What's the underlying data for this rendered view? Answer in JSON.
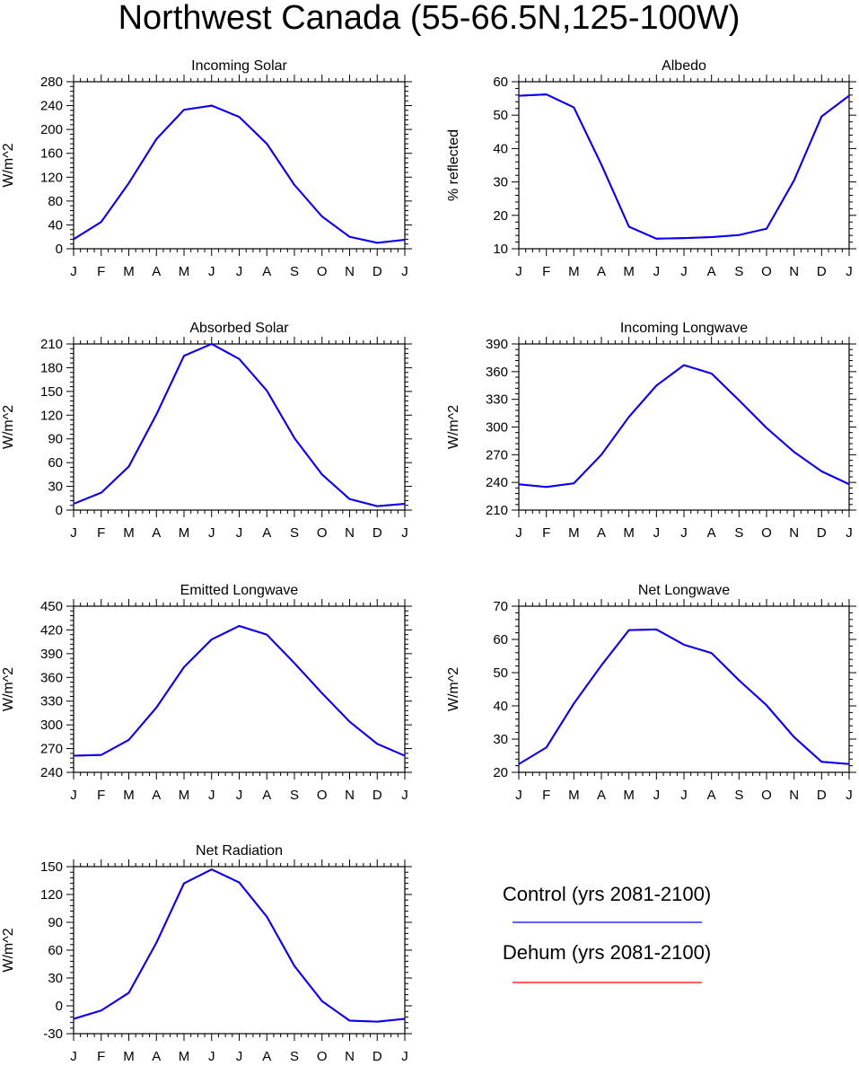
{
  "figure": {
    "title": "Northwest Canada (55-66.5N,125-100W)"
  },
  "colors": {
    "control": "#0000ff",
    "dehum": "#ff0000",
    "axis": "#000000"
  },
  "legend": {
    "entries": [
      {
        "label": "Control (yrs 2081-2100)",
        "color": "#0000ff"
      },
      {
        "label": "Dehum (yrs 2081-2100)",
        "color": "#ff0000"
      }
    ]
  },
  "chart_data": [
    {
      "type": "line",
      "title": "Incoming Solar",
      "ylabel": "W/m^2",
      "xlabel": "",
      "x": [
        "J",
        "F",
        "M",
        "A",
        "M",
        "J",
        "J",
        "A",
        "S",
        "O",
        "N",
        "D",
        "J"
      ],
      "ylim": [
        0,
        280
      ],
      "yticks": [
        0,
        40,
        80,
        120,
        160,
        200,
        240,
        280
      ],
      "series": [
        {
          "name": "Control (yrs 2081-2100)",
          "color": "#0000ff",
          "values": [
            16,
            45,
            110,
            184,
            233,
            240,
            221,
            176,
            107,
            54,
            20,
            10,
            15
          ]
        },
        {
          "name": "Dehum (yrs 2081-2100)",
          "color": "#ff0000",
          "values": [
            16,
            45,
            110,
            184,
            233,
            240,
            221,
            176,
            107,
            54,
            20,
            10,
            15
          ]
        }
      ]
    },
    {
      "type": "line",
      "title": "Albedo",
      "ylabel": "% reflected",
      "xlabel": "",
      "x": [
        "J",
        "F",
        "M",
        "A",
        "M",
        "J",
        "J",
        "A",
        "S",
        "O",
        "N",
        "D",
        "J"
      ],
      "ylim": [
        10,
        60
      ],
      "yticks": [
        10,
        20,
        30,
        40,
        50,
        60
      ],
      "series": [
        {
          "name": "Control (yrs 2081-2100)",
          "color": "#0000ff",
          "values": [
            55.8,
            56.2,
            52.3,
            35.2,
            16.6,
            13.0,
            13.2,
            13.5,
            14.1,
            16.0,
            30.5,
            49.6,
            55.8
          ]
        },
        {
          "name": "Dehum (yrs 2081-2100)",
          "color": "#ff0000",
          "values": [
            55.8,
            56.2,
            52.3,
            35.2,
            16.6,
            13.0,
            13.2,
            13.5,
            14.1,
            16.0,
            30.5,
            49.6,
            55.8
          ]
        }
      ]
    },
    {
      "type": "line",
      "title": "Absorbed Solar",
      "ylabel": "W/m^2",
      "xlabel": "",
      "x": [
        "J",
        "F",
        "M",
        "A",
        "M",
        "J",
        "J",
        "A",
        "S",
        "O",
        "N",
        "D",
        "J"
      ],
      "ylim": [
        0,
        210
      ],
      "yticks": [
        0,
        30,
        60,
        90,
        120,
        150,
        180,
        210
      ],
      "series": [
        {
          "name": "Control (yrs 2081-2100)",
          "color": "#0000ff",
          "values": [
            8,
            22,
            55,
            121,
            195,
            210,
            191,
            151,
            91,
            45,
            14,
            5,
            8
          ]
        },
        {
          "name": "Dehum (yrs 2081-2100)",
          "color": "#ff0000",
          "values": [
            8,
            22,
            55,
            121,
            195,
            210,
            191,
            151,
            91,
            45,
            14,
            5,
            8
          ]
        }
      ]
    },
    {
      "type": "line",
      "title": "Incoming Longwave",
      "ylabel": "W/m^2",
      "xlabel": "",
      "x": [
        "J",
        "F",
        "M",
        "A",
        "M",
        "J",
        "J",
        "A",
        "S",
        "O",
        "N",
        "D",
        "J"
      ],
      "ylim": [
        210,
        390
      ],
      "yticks": [
        210,
        240,
        270,
        300,
        330,
        360,
        390
      ],
      "series": [
        {
          "name": "Control (yrs 2081-2100)",
          "color": "#0000ff",
          "values": [
            238,
            235,
            239,
            270,
            311,
            345,
            367,
            358,
            329,
            299,
            273,
            252,
            238
          ]
        },
        {
          "name": "Dehum (yrs 2081-2100)",
          "color": "#ff0000",
          "values": [
            238,
            235,
            239,
            270,
            311,
            345,
            367,
            358,
            329,
            299,
            273,
            252,
            238
          ]
        }
      ]
    },
    {
      "type": "line",
      "title": "Emitted Longwave",
      "ylabel": "W/m^2",
      "xlabel": "",
      "x": [
        "J",
        "F",
        "M",
        "A",
        "M",
        "J",
        "J",
        "A",
        "S",
        "O",
        "N",
        "D",
        "J"
      ],
      "ylim": [
        240,
        450
      ],
      "yticks": [
        240,
        270,
        300,
        330,
        360,
        390,
        420,
        450
      ],
      "series": [
        {
          "name": "Control (yrs 2081-2100)",
          "color": "#0000ff",
          "values": [
            261,
            262,
            281,
            322,
            373,
            408,
            425,
            414,
            378,
            340,
            304,
            276,
            261
          ]
        },
        {
          "name": "Dehum (yrs 2081-2100)",
          "color": "#ff0000",
          "values": [
            261,
            262,
            281,
            322,
            373,
            408,
            425,
            414,
            378,
            340,
            304,
            276,
            261
          ]
        }
      ]
    },
    {
      "type": "line",
      "title": "Net Longwave",
      "ylabel": "W/m^2",
      "xlabel": "",
      "x": [
        "J",
        "F",
        "M",
        "A",
        "M",
        "J",
        "J",
        "A",
        "S",
        "O",
        "N",
        "D",
        "J"
      ],
      "ylim": [
        20,
        70
      ],
      "yticks": [
        20,
        30,
        40,
        50,
        60,
        70
      ],
      "series": [
        {
          "name": "Control (yrs 2081-2100)",
          "color": "#0000ff",
          "values": [
            22.5,
            27.5,
            40.7,
            52.2,
            62.8,
            63.0,
            58.4,
            55.9,
            47.7,
            40.2,
            30.6,
            23.2,
            22.5
          ]
        },
        {
          "name": "Dehum (yrs 2081-2100)",
          "color": "#ff0000",
          "values": [
            22.5,
            27.5,
            40.7,
            52.2,
            62.8,
            63.0,
            58.4,
            55.9,
            47.7,
            40.2,
            30.6,
            23.2,
            22.5
          ]
        }
      ]
    },
    {
      "type": "line",
      "title": "Net Radiation",
      "ylabel": "W/m^2",
      "xlabel": "",
      "x": [
        "J",
        "F",
        "M",
        "A",
        "M",
        "J",
        "J",
        "A",
        "S",
        "O",
        "N",
        "D",
        "J"
      ],
      "ylim": [
        -30,
        150
      ],
      "yticks": [
        -30,
        0,
        30,
        60,
        90,
        120,
        150
      ],
      "series": [
        {
          "name": "Control (yrs 2081-2100)",
          "color": "#0000ff",
          "values": [
            -14,
            -5,
            14,
            68,
            132,
            147,
            133,
            96,
            43,
            5,
            -16,
            -17,
            -14
          ]
        },
        {
          "name": "Dehum (yrs 2081-2100)",
          "color": "#ff0000",
          "values": [
            -14,
            -5,
            14,
            68,
            132,
            147,
            133,
            96,
            43,
            5,
            -16,
            -17,
            -14
          ]
        }
      ]
    }
  ]
}
